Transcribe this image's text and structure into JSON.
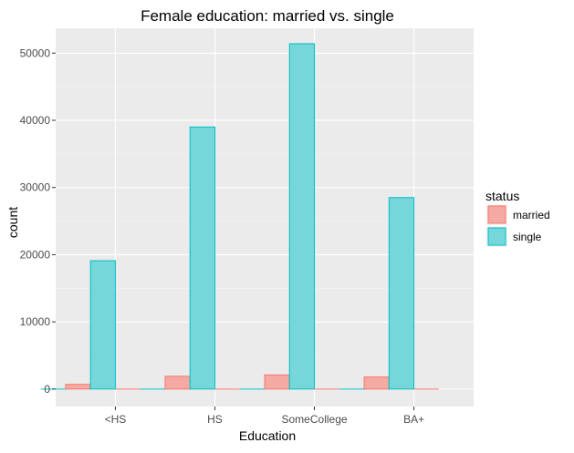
{
  "chart_data": {
    "type": "bar",
    "title": "Female education: married vs. single",
    "xlabel": "Education",
    "ylabel": "count",
    "categories": [
      "<HS",
      "HS",
      "SomeCollege",
      "BA+"
    ],
    "ylim": [
      -2600,
      53700
    ],
    "yticks": [
      0,
      10000,
      20000,
      30000,
      40000,
      50000
    ],
    "ytick_labels": [
      "0",
      "10000",
      "20000",
      "30000",
      "40000",
      "50000"
    ],
    "grid": true,
    "legend_position": "right",
    "legend": {
      "title": "status",
      "items": [
        {
          "label": "married",
          "fill": "#f4a9a3",
          "stroke": "#f8766d"
        },
        {
          "label": "single",
          "fill": "#76d7da",
          "stroke": "#00bfc4"
        }
      ]
    },
    "series": [
      {
        "name": "married",
        "values": [
          700,
          1900,
          2100,
          1800
        ]
      },
      {
        "name": "single",
        "values": [
          19100,
          39000,
          51400,
          28500
        ]
      }
    ],
    "colors": {
      "panel_bg": "#ebebeb",
      "grid_major": "#ffffff",
      "grid_minor": "#f2f2f2",
      "tick_label": "#4d4d4d",
      "text": "#000000"
    }
  }
}
